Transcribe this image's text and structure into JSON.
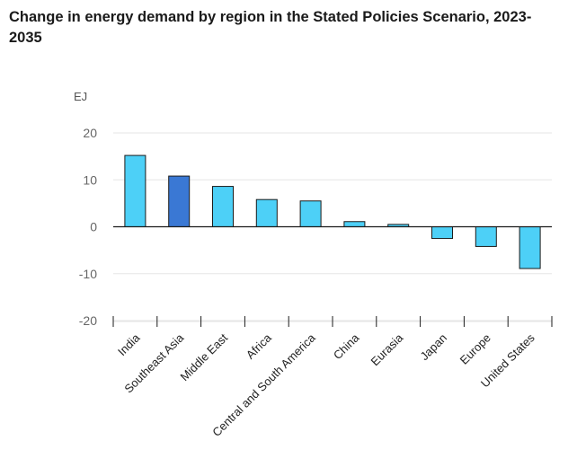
{
  "chart_data": {
    "type": "bar",
    "title": "Change in energy demand by region in the Stated Policies Scenario, 2023-2035",
    "title_lines": [
      "Change in energy demand by region in the Stated Policies Scenario, 2023-",
      "2035"
    ],
    "ylabel": "EJ",
    "xlabel": "",
    "categories": [
      "India",
      "Southeast Asia",
      "Middle East",
      "Africa",
      "Central and South America",
      "China",
      "Eurasia",
      "Japan",
      "Europe",
      "United States"
    ],
    "values": [
      15.2,
      10.8,
      8.6,
      5.8,
      5.5,
      1.1,
      0.5,
      -2.5,
      -4.2,
      -8.9
    ],
    "highlight_index": 1,
    "yticks": [
      20,
      10,
      0,
      -10,
      -20
    ],
    "ytick_labels": [
      "20",
      "10",
      "0",
      "-10",
      "-20"
    ],
    "ylim": [
      -20,
      20
    ],
    "grid": true,
    "legend": "none",
    "colors": {
      "bar": "#4dd0f7",
      "highlight": "#3a78d4",
      "bar_stroke": "#1b1b1b",
      "grid": "#e6e6e6",
      "axis": "#1b1b1b"
    }
  }
}
